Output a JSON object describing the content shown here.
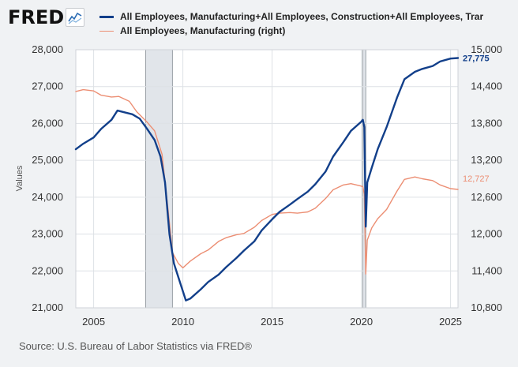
{
  "header": {
    "logo_text": "FRED",
    "logo_icon": "fred-chart-icon"
  },
  "legend": [
    {
      "label": "All Employees, Manufacturing+All Employees, Construction+All Employees, Trar",
      "color": "#123f8a"
    },
    {
      "label": "All Employees, Manufacturing (right)",
      "color": "#ec8e73"
    }
  ],
  "footer": {
    "source": "Source: U.S. Bureau of Labor Statistics via FRED®"
  },
  "chart_data": {
    "type": "line",
    "ylabel": "Values",
    "y_left": {
      "min": 21000,
      "max": 28000,
      "ticks": [
        "21,000",
        "22,000",
        "23,000",
        "24,000",
        "25,000",
        "26,000",
        "27,000",
        "28,000"
      ]
    },
    "y_right": {
      "min": 10800,
      "max": 15000,
      "ticks": [
        "10,800",
        "11,400",
        "12,000",
        "12,600",
        "13,200",
        "13,800",
        "14,400",
        "15,000"
      ]
    },
    "x_ticks": [
      "2005",
      "2010",
      "2015",
      "2020",
      "2025"
    ],
    "x_range": [
      "2004-01",
      "2025-06"
    ],
    "recessions": [
      [
        "2007-12",
        "2009-06"
      ],
      [
        "2020-02",
        "2020-04"
      ]
    ],
    "grid": true,
    "series": [
      {
        "name": "All Employees, Manufacturing+All Employees, Construction+All Employees, Trar",
        "axis": "left",
        "color": "#123f8a",
        "last_label": "27,775",
        "points": [
          [
            "2004-01",
            25300
          ],
          [
            "2004-06",
            25450
          ],
          [
            "2005-01",
            25620
          ],
          [
            "2005-06",
            25850
          ],
          [
            "2006-01",
            26100
          ],
          [
            "2006-05",
            26350
          ],
          [
            "2006-10",
            26300
          ],
          [
            "2007-03",
            26250
          ],
          [
            "2007-08",
            26130
          ],
          [
            "2008-01",
            25850
          ],
          [
            "2008-06",
            25550
          ],
          [
            "2008-10",
            25100
          ],
          [
            "2009-01",
            24400
          ],
          [
            "2009-04",
            23000
          ],
          [
            "2009-07",
            22200
          ],
          [
            "2009-11",
            21700
          ],
          [
            "2010-03",
            21200
          ],
          [
            "2010-06",
            21250
          ],
          [
            "2011-01",
            21500
          ],
          [
            "2011-06",
            21700
          ],
          [
            "2012-01",
            21900
          ],
          [
            "2012-06",
            22100
          ],
          [
            "2013-01",
            22350
          ],
          [
            "2013-06",
            22550
          ],
          [
            "2014-01",
            22800
          ],
          [
            "2014-06",
            23100
          ],
          [
            "2015-01",
            23400
          ],
          [
            "2015-06",
            23600
          ],
          [
            "2016-01",
            23800
          ],
          [
            "2016-06",
            23950
          ],
          [
            "2017-01",
            24150
          ],
          [
            "2017-06",
            24350
          ],
          [
            "2018-01",
            24700
          ],
          [
            "2018-06",
            25100
          ],
          [
            "2019-01",
            25500
          ],
          [
            "2019-06",
            25800
          ],
          [
            "2020-01",
            26050
          ],
          [
            "2020-02",
            26100
          ],
          [
            "2020-03",
            25900
          ],
          [
            "2020-04",
            23200
          ],
          [
            "2020-05",
            24400
          ],
          [
            "2020-08",
            24800
          ],
          [
            "2020-12",
            25300
          ],
          [
            "2021-06",
            25900
          ],
          [
            "2022-01",
            26700
          ],
          [
            "2022-06",
            27200
          ],
          [
            "2023-01",
            27400
          ],
          [
            "2023-06",
            27480
          ],
          [
            "2024-01",
            27560
          ],
          [
            "2024-06",
            27680
          ],
          [
            "2025-01",
            27760
          ],
          [
            "2025-06",
            27775
          ]
        ]
      },
      {
        "name": "All Employees, Manufacturing (right)",
        "axis": "right",
        "color": "#ec8e73",
        "last_label": "12,727",
        "points": [
          [
            "2004-01",
            14320
          ],
          [
            "2004-06",
            14350
          ],
          [
            "2005-01",
            14330
          ],
          [
            "2005-06",
            14260
          ],
          [
            "2006-01",
            14230
          ],
          [
            "2006-06",
            14240
          ],
          [
            "2007-01",
            14160
          ],
          [
            "2007-06",
            13990
          ],
          [
            "2008-01",
            13820
          ],
          [
            "2008-06",
            13680
          ],
          [
            "2008-11",
            13300
          ],
          [
            "2009-03",
            12400
          ],
          [
            "2009-06",
            11700
          ],
          [
            "2009-10",
            11520
          ],
          [
            "2010-01",
            11450
          ],
          [
            "2010-06",
            11560
          ],
          [
            "2011-01",
            11680
          ],
          [
            "2011-06",
            11740
          ],
          [
            "2012-01",
            11880
          ],
          [
            "2012-06",
            11940
          ],
          [
            "2013-01",
            11990
          ],
          [
            "2013-06",
            12010
          ],
          [
            "2014-01",
            12110
          ],
          [
            "2014-06",
            12220
          ],
          [
            "2015-01",
            12320
          ],
          [
            "2015-06",
            12340
          ],
          [
            "2016-01",
            12350
          ],
          [
            "2016-06",
            12340
          ],
          [
            "2017-01",
            12360
          ],
          [
            "2017-06",
            12420
          ],
          [
            "2018-01",
            12580
          ],
          [
            "2018-06",
            12720
          ],
          [
            "2019-01",
            12800
          ],
          [
            "2019-06",
            12820
          ],
          [
            "2020-01",
            12780
          ],
          [
            "2020-02",
            12770
          ],
          [
            "2020-03",
            12650
          ],
          [
            "2020-04",
            11350
          ],
          [
            "2020-05",
            11900
          ],
          [
            "2020-08",
            12100
          ],
          [
            "2020-12",
            12250
          ],
          [
            "2021-06",
            12400
          ],
          [
            "2022-01",
            12700
          ],
          [
            "2022-06",
            12890
          ],
          [
            "2023-01",
            12930
          ],
          [
            "2023-06",
            12900
          ],
          [
            "2024-01",
            12870
          ],
          [
            "2024-06",
            12800
          ],
          [
            "2025-01",
            12740
          ],
          [
            "2025-06",
            12727
          ]
        ]
      }
    ]
  }
}
